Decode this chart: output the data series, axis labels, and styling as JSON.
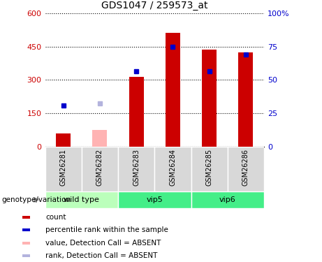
{
  "title": "GDS1047 / 259573_at",
  "samples": [
    "GSM26281",
    "GSM26282",
    "GSM26283",
    "GSM26284",
    "GSM26285",
    "GSM26286"
  ],
  "count_values": [
    60,
    null,
    315,
    510,
    435,
    425
  ],
  "count_absent_values": [
    null,
    75,
    null,
    null,
    null,
    null
  ],
  "rank_values": [
    185,
    null,
    340,
    450,
    340,
    415
  ],
  "rank_absent_values": [
    null,
    195,
    null,
    null,
    null,
    null
  ],
  "ylim_left": [
    0,
    600
  ],
  "ylim_right": [
    0,
    100
  ],
  "yticks_left": [
    0,
    150,
    300,
    450,
    600
  ],
  "yticks_right": [
    0,
    25,
    50,
    75,
    100
  ],
  "yticklabels_left": [
    "0",
    "150",
    "300",
    "450",
    "600"
  ],
  "yticklabels_right": [
    "0",
    "25",
    "50",
    "75",
    "100%"
  ],
  "color_count": "#cc0000",
  "color_rank": "#0000cc",
  "color_count_absent": "#ffb3b3",
  "color_rank_absent": "#b3b3dd",
  "group_defs": [
    {
      "label": "wild type",
      "start": 0,
      "end": 1,
      "color": "#bbffbb"
    },
    {
      "label": "vip5",
      "start": 2,
      "end": 3,
      "color": "#44ee88"
    },
    {
      "label": "vip6",
      "start": 4,
      "end": 5,
      "color": "#44ee88"
    }
  ],
  "legend_items": [
    {
      "label": "count",
      "color": "#cc0000"
    },
    {
      "label": "percentile rank within the sample",
      "color": "#0000cc"
    },
    {
      "label": "value, Detection Call = ABSENT",
      "color": "#ffb3b3"
    },
    {
      "label": "rank, Detection Call = ABSENT",
      "color": "#b3b3dd"
    }
  ],
  "xlabel_bottom": "genotype/variation",
  "bar_width": 0.4
}
